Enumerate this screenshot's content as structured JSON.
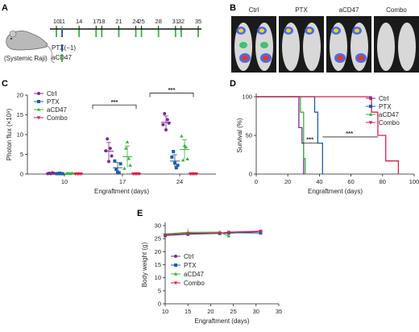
{
  "panels": {
    "A": "A",
    "B": "B",
    "C": "C",
    "D": "D",
    "E": "E"
  },
  "panelA": {
    "mouse_caption": "(Systemic Raji)",
    "day_labels": [
      "10",
      "11",
      "14",
      "17",
      "18",
      "21",
      "24",
      "25",
      "28",
      "31",
      "32",
      "35"
    ],
    "highlight_day": "11",
    "row_labels": [
      "PTX(−1)",
      "aCD47"
    ],
    "colors": {
      "ptx": "#1f4e8c",
      "acd47": "#3cb043",
      "highlight": "#3cb043"
    }
  },
  "panelB": {
    "labels": [
      "Ctrl",
      "PTX",
      "aCD47",
      "Combo"
    ]
  },
  "series_style": [
    {
      "name": "Ctrl",
      "color": "#7b2d8e",
      "marker": "circle"
    },
    {
      "name": "PTX",
      "color": "#1f5f9e",
      "marker": "square"
    },
    {
      "name": "aCD47",
      "color": "#3cb043",
      "marker": "triangle"
    },
    {
      "name": "Combo",
      "color": "#d6204d",
      "marker": "triangle-down"
    }
  ],
  "chart_data": [
    {
      "panel": "C",
      "type": "scatter",
      "ylabel": "Photon flux (×10⁸)",
      "xlabel": "Engraftment (days)",
      "categories": [
        "10",
        "17",
        "24"
      ],
      "ylim": [
        0,
        20
      ],
      "yticks": [
        0,
        5,
        10,
        15,
        20
      ],
      "significance": [
        "***",
        "***"
      ],
      "series": [
        {
          "name": "Ctrl",
          "points": [
            [
              0.1,
              0.2,
              0.1,
              0.3,
              0.2
            ],
            [
              5.9,
              8.9,
              3.2,
              6.5,
              4.6
            ],
            [
              12.5,
              15.3,
              11.2,
              13.8,
              12.9
            ]
          ],
          "mean": [
            0.2,
            5.8,
            13.1
          ],
          "sd": [
            0.1,
            2.2,
            1.6
          ]
        },
        {
          "name": "PTX",
          "points": [
            [
              0.1,
              0.1,
              0.2,
              0.1,
              0.1
            ],
            [
              3.3,
              1.2,
              0.5,
              0.3,
              2.6
            ],
            [
              4.3,
              5.7,
              2.8,
              1.6,
              2.2
            ]
          ],
          "mean": [
            0.1,
            1.6,
            3.3
          ],
          "sd": [
            0.05,
            1.3,
            1.6
          ]
        },
        {
          "name": "aCD47",
          "points": [
            [
              0.1,
              0.2,
              0.1,
              0.1,
              0.2
            ],
            [
              1.4,
              6.5,
              8.1,
              3.9,
              2.2
            ],
            [
              9.6,
              3.5,
              7.2,
              6.8,
              3.8
            ]
          ],
          "mean": [
            0.1,
            4.4,
            6.2
          ],
          "sd": [
            0.1,
            2.7,
            2.5
          ]
        },
        {
          "name": "Combo",
          "points": [
            [
              0.05,
              0.1,
              0.05,
              0.1,
              0.05
            ],
            [
              0.05,
              0.1,
              0.05,
              0.1,
              0.05
            ],
            [
              0.05,
              0.1,
              0.05,
              0.1,
              0.05
            ]
          ],
          "mean": [
            0.1,
            0.1,
            0.1
          ],
          "sd": [
            0.03,
            0.03,
            0.03
          ]
        }
      ]
    },
    {
      "panel": "D",
      "type": "line",
      "ylabel": "Survival (%)",
      "xlabel": "Engraftment (days)",
      "xlim": [
        0,
        100
      ],
      "ylim": [
        0,
        100
      ],
      "xticks": [
        0,
        20,
        40,
        60,
        80,
        100
      ],
      "yticks": [
        0,
        50,
        100
      ],
      "significance": [
        "***",
        "***"
      ],
      "series": [
        {
          "name": "Ctrl",
          "steps": [
            [
              0,
              100
            ],
            [
              27,
              100
            ],
            [
              27,
              60
            ],
            [
              29,
              60
            ],
            [
              29,
              40
            ],
            [
              30,
              40
            ],
            [
              30,
              0
            ]
          ]
        },
        {
          "name": "PTX",
          "steps": [
            [
              0,
              100
            ],
            [
              37,
              100
            ],
            [
              37,
              80
            ],
            [
              39,
              80
            ],
            [
              39,
              40
            ],
            [
              42,
              40
            ],
            [
              42,
              0
            ]
          ]
        },
        {
          "name": "aCD47",
          "steps": [
            [
              0,
              100
            ],
            [
              28,
              100
            ],
            [
              28,
              80
            ],
            [
              30,
              80
            ],
            [
              30,
              20
            ],
            [
              31,
              20
            ],
            [
              31,
              0
            ]
          ]
        },
        {
          "name": "Combo",
          "steps": [
            [
              0,
              100
            ],
            [
              73,
              100
            ],
            [
              73,
              80
            ],
            [
              77,
              80
            ],
            [
              77,
              50
            ],
            [
              82,
              50
            ],
            [
              82,
              17
            ],
            [
              90,
              17
            ],
            [
              90,
              0
            ]
          ]
        }
      ]
    },
    {
      "panel": "E",
      "type": "line",
      "ylabel": "Body weight (g)",
      "xlabel": "Engraftment (days)",
      "xlim": [
        10,
        35
      ],
      "ylim": [
        0,
        30
      ],
      "xticks": [
        10,
        15,
        20,
        25,
        30,
        35
      ],
      "yticks": [
        0,
        5,
        10,
        15,
        20,
        25,
        30
      ],
      "series": [
        {
          "name": "Ctrl",
          "x": [
            10,
            15,
            22,
            24,
            31
          ],
          "y": [
            26.5,
            27.0,
            27.2,
            27.1,
            27.8
          ],
          "err": [
            0.4,
            0.5,
            0.5,
            0.4,
            0.3
          ]
        },
        {
          "name": "PTX",
          "x": [
            10,
            15,
            22,
            24,
            31
          ],
          "y": [
            26.2,
            26.7,
            27.0,
            27.3,
            27.2
          ],
          "err": [
            0.3,
            0.4,
            0.4,
            0.3,
            0.3
          ]
        },
        {
          "name": "aCD47",
          "x": [
            10,
            15,
            22,
            24
          ],
          "y": [
            26.8,
            27.4,
            27.5,
            26.0
          ],
          "err": [
            0.4,
            1.5,
            0.5,
            0.4
          ]
        },
        {
          "name": "Combo",
          "x": [
            10,
            15,
            22,
            24,
            31
          ],
          "y": [
            26.4,
            26.9,
            27.1,
            27.5,
            27.9
          ],
          "err": [
            0.3,
            0.3,
            0.3,
            0.3,
            0.3
          ]
        }
      ]
    }
  ]
}
